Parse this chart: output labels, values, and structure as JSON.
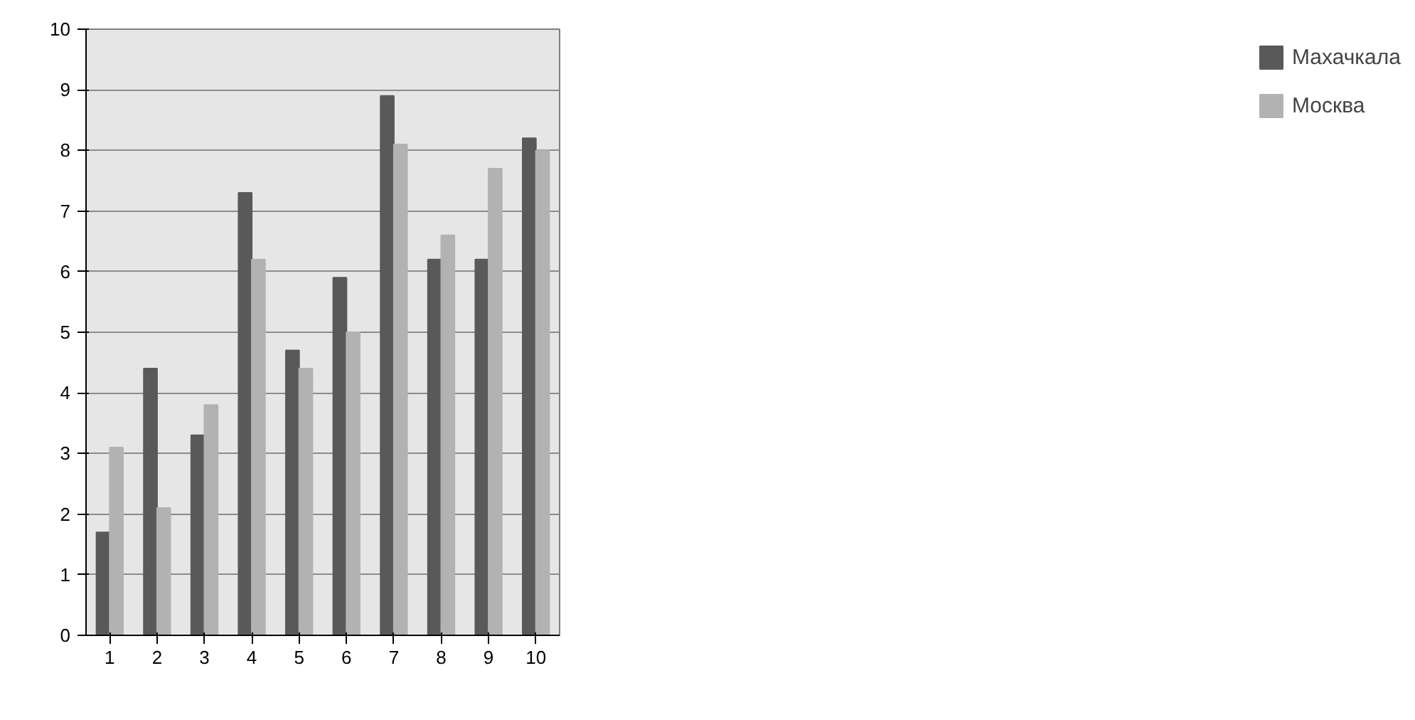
{
  "chart_data": {
    "type": "bar",
    "categories": [
      "1",
      "2",
      "3",
      "4",
      "5",
      "6",
      "7",
      "8",
      "9",
      "10"
    ],
    "series": [
      {
        "name": "Махачкала",
        "color": "#595959",
        "values": [
          1.7,
          4.4,
          3.3,
          7.3,
          4.7,
          5.9,
          8.9,
          6.2,
          6.2,
          8.2
        ]
      },
      {
        "name": "Москва",
        "color": "#b2b2b2",
        "values": [
          3.1,
          2.1,
          3.8,
          6.2,
          4.4,
          5.0,
          8.1,
          6.6,
          7.7,
          8.0
        ]
      }
    ],
    "ylim": [
      0,
      10
    ],
    "yticks": [
      0,
      1,
      2,
      3,
      4,
      5,
      6,
      7,
      8,
      9,
      10
    ],
    "grid": "y",
    "legend": "right"
  }
}
